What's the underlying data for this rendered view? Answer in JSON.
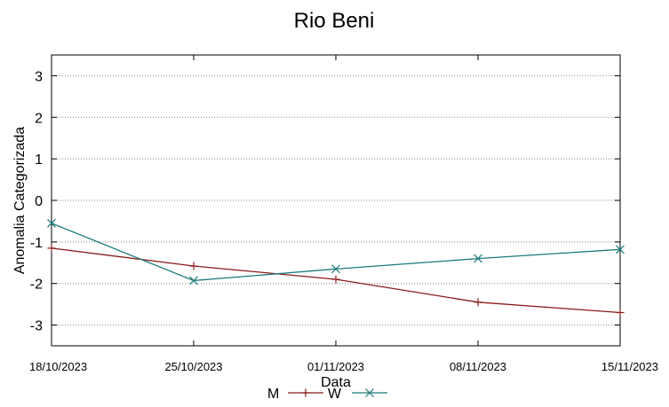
{
  "chart_data": {
    "type": "line",
    "title": "Rio Beni",
    "xlabel": "Data",
    "ylabel": "Anomalia Categorizada",
    "x": [
      "18/10/2023",
      "25/10/2023",
      "01/11/2023",
      "08/11/2023",
      "15/11/2023"
    ],
    "ylim": [
      -3.5,
      3.5
    ],
    "yticks": [
      "3",
      "2",
      "1",
      "0",
      "-1",
      "-2",
      "-3"
    ],
    "ytick_values": [
      3,
      2,
      1,
      0,
      -1,
      -2,
      -3
    ],
    "grid": "horizontal dotted",
    "legend_position": "bottom",
    "series": [
      {
        "name": "M",
        "color": "#8b1a1a",
        "marker": "plus",
        "values": [
          -1.15,
          -1.58,
          -1.9,
          -2.45,
          -2.7
        ]
      },
      {
        "name": "W",
        "color": "#1a7a7a",
        "marker": "cross",
        "values": [
          -0.55,
          -1.93,
          -1.65,
          -1.4,
          -1.18
        ]
      }
    ]
  }
}
